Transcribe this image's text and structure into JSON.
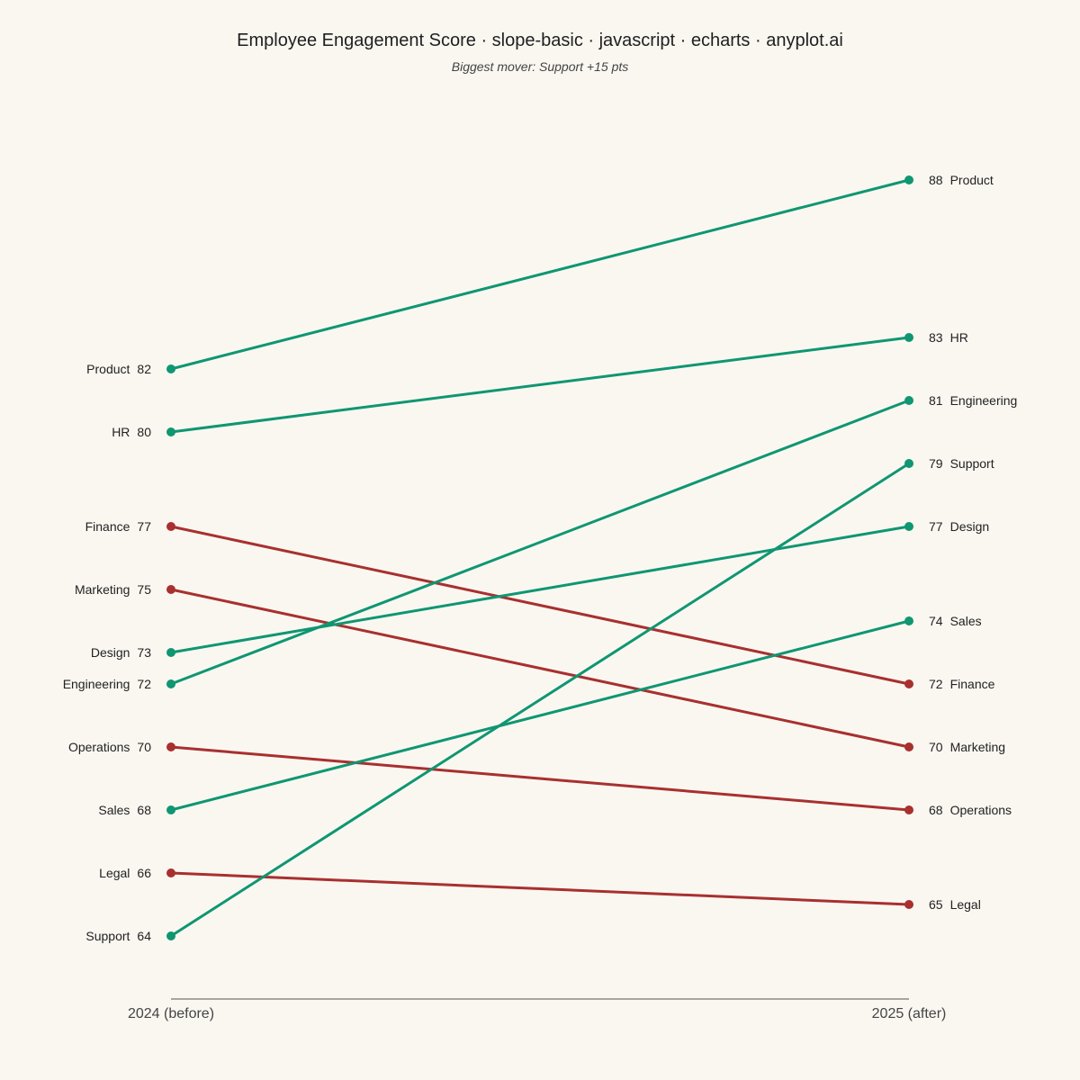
{
  "chart_data": {
    "type": "slope",
    "title": "Employee Engagement Score · slope-basic · javascript · echarts · anyplot.ai",
    "subtitle": "Biggest mover: Support +15 pts",
    "x": [
      "2024 (before)",
      "2025 (after)"
    ],
    "ylim": [
      61,
      91
    ],
    "colors": {
      "increase": "#0F9672",
      "decrease": "#A8302F"
    },
    "series": [
      {
        "name": "Product",
        "values": [
          82,
          88
        ]
      },
      {
        "name": "HR",
        "values": [
          80,
          83
        ]
      },
      {
        "name": "Finance",
        "values": [
          77,
          72
        ]
      },
      {
        "name": "Marketing",
        "values": [
          75,
          70
        ]
      },
      {
        "name": "Design",
        "values": [
          73,
          77
        ]
      },
      {
        "name": "Engineering",
        "values": [
          72,
          81
        ]
      },
      {
        "name": "Operations",
        "values": [
          70,
          68
        ]
      },
      {
        "name": "Sales",
        "values": [
          68,
          74
        ]
      },
      {
        "name": "Legal",
        "values": [
          66,
          65
        ]
      },
      {
        "name": "Support",
        "values": [
          64,
          79
        ]
      }
    ]
  }
}
